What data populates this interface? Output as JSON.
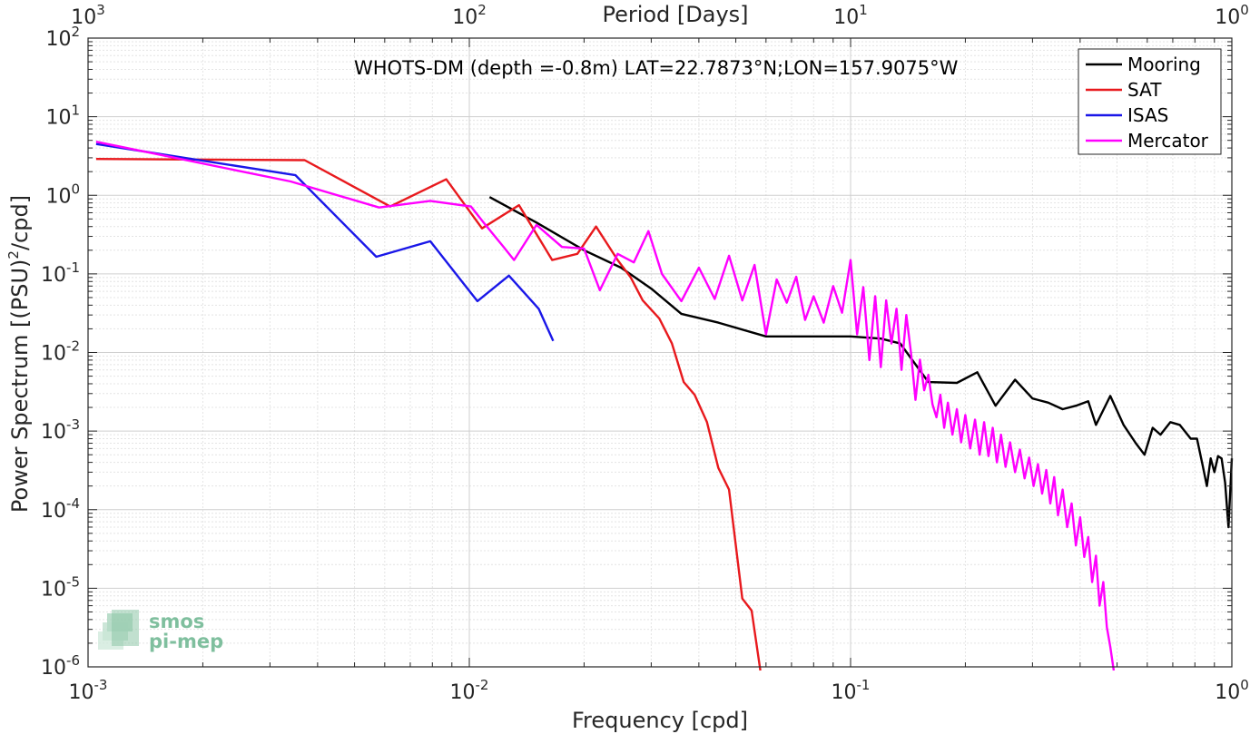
{
  "chart_data": {
    "type": "line",
    "title": "WHOTS-DM (depth =-0.8m) LAT=22.7873°N;LON=157.9075°W",
    "xlabel": "Frequency [cpd]",
    "ylabel": "Power Spectrum [(PSU)²/cpd]",
    "ylabel_main": "Power Spectrum [(PSU)",
    "ylabel_sup": "2",
    "ylabel_tail": "/cpd]",
    "top_xlabel": "Period [Days]",
    "xscale": "log",
    "yscale": "log",
    "xlim": [
      0.001,
      1
    ],
    "ylim": [
      1e-06,
      100
    ],
    "grid": true,
    "legend_position": "top-right",
    "x_ticks": [
      {
        "value": 0.001,
        "base": "10",
        "exp": "-3"
      },
      {
        "value": 0.01,
        "base": "10",
        "exp": "-2"
      },
      {
        "value": 0.1,
        "base": "10",
        "exp": "-1"
      },
      {
        "value": 1,
        "base": "10",
        "exp": "0"
      }
    ],
    "top_ticks": [
      {
        "value": 0.001,
        "base": "10",
        "exp": "3"
      },
      {
        "value": 0.01,
        "base": "10",
        "exp": "2"
      },
      {
        "value": 0.1,
        "base": "10",
        "exp": "1"
      },
      {
        "value": 1,
        "base": "10",
        "exp": "0"
      }
    ],
    "y_ticks": [
      {
        "value": 100,
        "base": "10",
        "exp": "2"
      },
      {
        "value": 10,
        "base": "10",
        "exp": "1"
      },
      {
        "value": 1,
        "base": "10",
        "exp": "0"
      },
      {
        "value": 0.1,
        "base": "10",
        "exp": "-1"
      },
      {
        "value": 0.01,
        "base": "10",
        "exp": "-2"
      },
      {
        "value": 0.001,
        "base": "10",
        "exp": "-3"
      },
      {
        "value": 0.0001,
        "base": "10",
        "exp": "-4"
      },
      {
        "value": 1e-05,
        "base": "10",
        "exp": "-5"
      },
      {
        "value": 1e-06,
        "base": "10",
        "exp": "-6"
      }
    ],
    "series": [
      {
        "name": "Mooring",
        "color": "#000000",
        "points": [
          [
            0.0113,
            0.95
          ],
          [
            0.015,
            0.45
          ],
          [
            0.02,
            0.2
          ],
          [
            0.025,
            0.12
          ],
          [
            0.03,
            0.065
          ],
          [
            0.036,
            0.031
          ],
          [
            0.045,
            0.024
          ],
          [
            0.06,
            0.016
          ],
          [
            0.08,
            0.016
          ],
          [
            0.1,
            0.016
          ],
          [
            0.12,
            0.015
          ],
          [
            0.135,
            0.013
          ],
          [
            0.16,
            0.0042
          ],
          [
            0.19,
            0.0041
          ],
          [
            0.215,
            0.0056
          ],
          [
            0.24,
            0.0021
          ],
          [
            0.27,
            0.0045
          ],
          [
            0.3,
            0.0026
          ],
          [
            0.33,
            0.0023
          ],
          [
            0.36,
            0.0019
          ],
          [
            0.39,
            0.0021
          ],
          [
            0.42,
            0.0024
          ],
          [
            0.44,
            0.0012
          ],
          [
            0.48,
            0.0028
          ],
          [
            0.52,
            0.0012
          ],
          [
            0.56,
            0.0007
          ],
          [
            0.59,
            0.0005
          ],
          [
            0.62,
            0.0011
          ],
          [
            0.65,
            0.0009
          ],
          [
            0.69,
            0.0013
          ],
          [
            0.73,
            0.0012
          ],
          [
            0.78,
            0.0008
          ],
          [
            0.81,
            0.0008
          ],
          [
            0.84,
            0.00035
          ],
          [
            0.86,
            0.0002
          ],
          [
            0.88,
            0.00045
          ],
          [
            0.9,
            0.0003
          ],
          [
            0.92,
            0.00048
          ],
          [
            0.94,
            0.00045
          ],
          [
            0.96,
            0.00022
          ],
          [
            0.98,
            6e-05
          ],
          [
            1.0,
            0.00045
          ]
        ]
      },
      {
        "name": "SAT",
        "color": "#e8191d",
        "points": [
          [
            0.00105,
            2.9
          ],
          [
            0.0037,
            2.8
          ],
          [
            0.0062,
            0.72
          ],
          [
            0.0087,
            1.6
          ],
          [
            0.0108,
            0.38
          ],
          [
            0.0135,
            0.75
          ],
          [
            0.0165,
            0.15
          ],
          [
            0.0192,
            0.18
          ],
          [
            0.0215,
            0.4
          ],
          [
            0.0245,
            0.15
          ],
          [
            0.0265,
            0.09
          ],
          [
            0.0285,
            0.046
          ],
          [
            0.0315,
            0.027
          ],
          [
            0.034,
            0.013
          ],
          [
            0.0365,
            0.0042
          ],
          [
            0.039,
            0.0029
          ],
          [
            0.042,
            0.0013
          ],
          [
            0.045,
            0.00034
          ],
          [
            0.048,
            0.00018
          ],
          [
            0.052,
            7.4e-06
          ],
          [
            0.055,
            5.2e-06
          ],
          [
            0.058,
            9e-07
          ]
        ]
      },
      {
        "name": "ISAS",
        "color": "#1a17e8",
        "points": [
          [
            0.00105,
            4.5
          ],
          [
            0.0035,
            1.8
          ],
          [
            0.0057,
            0.165
          ],
          [
            0.0079,
            0.26
          ],
          [
            0.0105,
            0.045
          ],
          [
            0.0127,
            0.095
          ],
          [
            0.0152,
            0.036
          ],
          [
            0.0166,
            0.014
          ]
        ]
      },
      {
        "name": "Mercator",
        "color": "#ff00ff",
        "points": [
          [
            0.00105,
            4.8
          ],
          [
            0.0034,
            1.5
          ],
          [
            0.0058,
            0.7
          ],
          [
            0.0079,
            0.85
          ],
          [
            0.0101,
            0.72
          ],
          [
            0.0109,
            0.45
          ],
          [
            0.0123,
            0.22
          ],
          [
            0.0131,
            0.15
          ],
          [
            0.015,
            0.42
          ],
          [
            0.0175,
            0.22
          ],
          [
            0.02,
            0.21
          ],
          [
            0.022,
            0.062
          ],
          [
            0.0245,
            0.18
          ],
          [
            0.027,
            0.14
          ],
          [
            0.0295,
            0.35
          ],
          [
            0.032,
            0.1
          ],
          [
            0.036,
            0.045
          ],
          [
            0.04,
            0.12
          ],
          [
            0.044,
            0.048
          ],
          [
            0.048,
            0.17
          ],
          [
            0.052,
            0.046
          ],
          [
            0.056,
            0.13
          ],
          [
            0.06,
            0.017
          ],
          [
            0.064,
            0.085
          ],
          [
            0.068,
            0.043
          ],
          [
            0.072,
            0.092
          ],
          [
            0.076,
            0.026
          ],
          [
            0.08,
            0.052
          ],
          [
            0.085,
            0.024
          ],
          [
            0.09,
            0.07
          ],
          [
            0.095,
            0.032
          ],
          [
            0.1,
            0.15
          ],
          [
            0.104,
            0.017
          ],
          [
            0.108,
            0.068
          ],
          [
            0.112,
            0.008
          ],
          [
            0.116,
            0.052
          ],
          [
            0.12,
            0.0065
          ],
          [
            0.124,
            0.046
          ],
          [
            0.128,
            0.013
          ],
          [
            0.132,
            0.036
          ],
          [
            0.136,
            0.006
          ],
          [
            0.14,
            0.03
          ],
          [
            0.144,
            0.01
          ],
          [
            0.148,
            0.0025
          ],
          [
            0.152,
            0.0081
          ],
          [
            0.156,
            0.0033
          ],
          [
            0.16,
            0.0052
          ],
          [
            0.164,
            0.0022
          ],
          [
            0.168,
            0.0015
          ],
          [
            0.172,
            0.0029
          ],
          [
            0.176,
            0.0011
          ],
          [
            0.18,
            0.0023
          ],
          [
            0.185,
            0.0009
          ],
          [
            0.19,
            0.0019
          ],
          [
            0.195,
            0.00072
          ],
          [
            0.2,
            0.0016
          ],
          [
            0.206,
            0.0006
          ],
          [
            0.212,
            0.0014
          ],
          [
            0.218,
            0.0005
          ],
          [
            0.224,
            0.0013
          ],
          [
            0.23,
            0.00048
          ],
          [
            0.236,
            0.0011
          ],
          [
            0.242,
            0.0004
          ],
          [
            0.248,
            0.0009
          ],
          [
            0.255,
            0.00035
          ],
          [
            0.262,
            0.00072
          ],
          [
            0.27,
            0.0003
          ],
          [
            0.278,
            0.00058
          ],
          [
            0.286,
            0.00025
          ],
          [
            0.294,
            0.00046
          ],
          [
            0.302,
            0.0002
          ],
          [
            0.31,
            0.00038
          ],
          [
            0.318,
            0.00016
          ],
          [
            0.326,
            0.00032
          ],
          [
            0.334,
            0.00012
          ],
          [
            0.342,
            0.00026
          ],
          [
            0.35,
            8.5e-05
          ],
          [
            0.36,
            0.00018
          ],
          [
            0.37,
            6e-05
          ],
          [
            0.38,
            0.00012
          ],
          [
            0.39,
            3.5e-05
          ],
          [
            0.4,
            8e-05
          ],
          [
            0.41,
            2.5e-05
          ],
          [
            0.42,
            4.5e-05
          ],
          [
            0.43,
            1.2e-05
          ],
          [
            0.44,
            2.6e-05
          ],
          [
            0.45,
            6e-06
          ],
          [
            0.46,
            1.2e-05
          ],
          [
            0.47,
            3.2e-06
          ],
          [
            0.48,
            1.8e-06
          ],
          [
            0.49,
            9e-07
          ]
        ]
      }
    ]
  },
  "logo": {
    "line1": "smos",
    "line2": "pi-mep",
    "color": "#7fbf9e"
  }
}
